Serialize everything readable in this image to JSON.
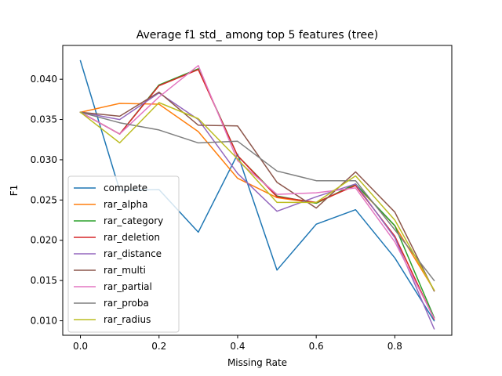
{
  "chart_data": {
    "type": "line",
    "title": "Average f1 std_ among top 5 features (tree)",
    "xlabel": "Missing Rate",
    "ylabel": "F1",
    "xlim": [
      -0.045,
      0.945
    ],
    "ylim": [
      0.0082,
      0.0442
    ],
    "xticks": [
      0.0,
      0.2,
      0.4,
      0.6,
      0.8
    ],
    "xtick_labels": [
      "0.0",
      "0.2",
      "0.4",
      "0.6",
      "0.8"
    ],
    "yticks": [
      0.01,
      0.015,
      0.02,
      0.025,
      0.03,
      0.035,
      0.04
    ],
    "ytick_labels": [
      "0.010",
      "0.015",
      "0.020",
      "0.025",
      "0.030",
      "0.035",
      "0.040"
    ],
    "grid": false,
    "legend_position": "lower-left",
    "x": [
      0.0,
      0.1,
      0.2,
      0.3,
      0.4,
      0.5,
      0.6,
      0.7,
      0.8,
      0.9
    ],
    "series": [
      {
        "name": "complete",
        "color": "#1f77b4",
        "values": [
          0.0423,
          0.0262,
          0.0263,
          0.021,
          0.0307,
          0.0163,
          0.022,
          0.0238,
          0.0178,
          0.01
        ]
      },
      {
        "name": "rar_alpha",
        "color": "#ff7f0e",
        "values": [
          0.0359,
          0.037,
          0.0369,
          0.0335,
          0.0277,
          0.0253,
          0.0246,
          0.0269,
          0.0218,
          0.0138
        ]
      },
      {
        "name": "rar_category",
        "color": "#2ca02c",
        "values": [
          0.0359,
          0.0332,
          0.0393,
          0.0413,
          0.0305,
          0.0255,
          0.0246,
          0.027,
          0.0218,
          0.0104
        ]
      },
      {
        "name": "rar_deletion",
        "color": "#d62728",
        "values": [
          0.0359,
          0.0332,
          0.0392,
          0.0412,
          0.0305,
          0.0254,
          0.0247,
          0.0268,
          0.0205,
          0.0102
        ]
      },
      {
        "name": "rar_distance",
        "color": "#9467bd",
        "values": [
          0.0359,
          0.035,
          0.0383,
          0.035,
          0.0283,
          0.0236,
          0.0254,
          0.027,
          0.0203,
          0.009
        ]
      },
      {
        "name": "rar_multi",
        "color": "#8c564b",
        "values": [
          0.0359,
          0.0354,
          0.0384,
          0.0343,
          0.0342,
          0.0272,
          0.024,
          0.0285,
          0.0235,
          0.0137
        ]
      },
      {
        "name": "rar_partial",
        "color": "#e377c2",
        "values": [
          0.0359,
          0.0332,
          0.0378,
          0.0417,
          0.0299,
          0.0257,
          0.0259,
          0.0265,
          0.0198,
          0.0103
        ]
      },
      {
        "name": "rar_proba",
        "color": "#7f7f7f",
        "values": [
          0.0359,
          0.0346,
          0.0337,
          0.0321,
          0.0323,
          0.0286,
          0.0274,
          0.0274,
          0.0213,
          0.015
        ]
      },
      {
        "name": "rar_radius",
        "color": "#bcbd22",
        "values": [
          0.0359,
          0.0321,
          0.0371,
          0.0351,
          0.0301,
          0.0247,
          0.0247,
          0.028,
          0.0225,
          0.0138
        ]
      }
    ]
  }
}
